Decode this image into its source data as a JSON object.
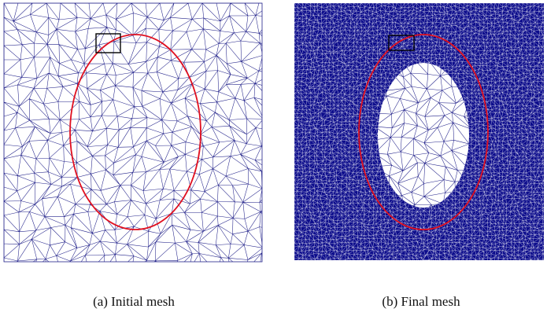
{
  "figure": {
    "panels": [
      {
        "caption": "(a) Initial mesh"
      },
      {
        "caption": "(b) Final mesh"
      }
    ]
  }
}
